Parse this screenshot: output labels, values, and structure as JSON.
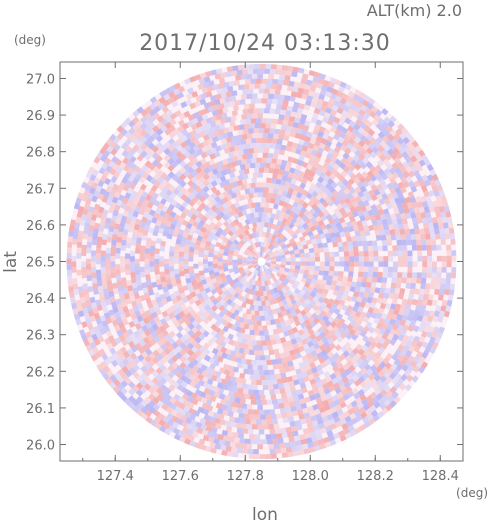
{
  "chart_data": {
    "type": "heatmap",
    "title": "2017/10/24 03:13:30",
    "subtitle": "ALT(km) 2.0",
    "xlabel": "lon",
    "ylabel": "lat",
    "x_unit": "(deg)",
    "y_unit": "(deg)",
    "xlim": [
      127.23,
      128.47
    ],
    "ylim": [
      25.955,
      27.045
    ],
    "x_ticks": [
      127.4,
      127.6,
      127.8,
      128.0,
      128.2,
      128.4
    ],
    "x_tick_labels": [
      "127.4",
      "127.6",
      "127.8",
      "128.0",
      "128.2",
      "128.4"
    ],
    "y_ticks": [
      26.0,
      26.1,
      26.2,
      26.3,
      26.4,
      26.5,
      26.6,
      26.7,
      26.8,
      26.9,
      27.0
    ],
    "y_tick_labels": [
      "26.0",
      "26.1",
      "26.2",
      "26.3",
      "26.4",
      "26.5",
      "26.6",
      "26.7",
      "26.8",
      "26.9",
      "27.0"
    ],
    "center": {
      "lon": 127.85,
      "lat": 26.5
    },
    "radius_deg": {
      "lon": 0.6,
      "lat": 0.54
    },
    "grid": false,
    "colors": {
      "positive": "#f08c8c",
      "negative": "#9a9af2",
      "axis": "#6e6e6e"
    }
  }
}
